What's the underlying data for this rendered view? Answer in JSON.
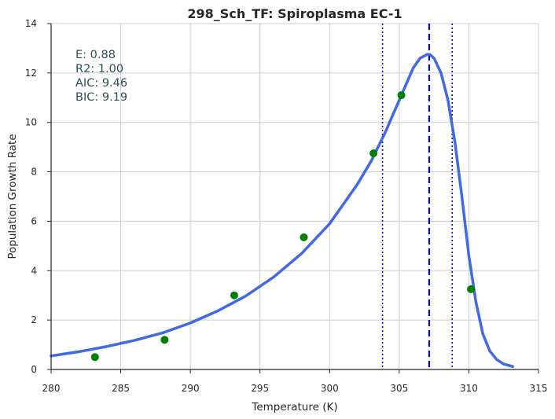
{
  "chart_data": {
    "type": "line",
    "title": "298_Sch_TF: Spiroplasma EC-1",
    "xlabel": "Temperature (K)",
    "ylabel": "Population Growth Rate",
    "xlim": [
      280,
      315
    ],
    "ylim": [
      0,
      14
    ],
    "xticks": [
      280,
      285,
      290,
      295,
      300,
      305,
      310,
      315
    ],
    "yticks": [
      0,
      2,
      4,
      6,
      8,
      10,
      12,
      14
    ],
    "grid": true,
    "stats": [
      "E:  0.88",
      "R2:  1.00",
      "AIC: 9.46",
      "BIC: 9.19"
    ],
    "observed_points": {
      "color": "#008000",
      "x": [
        283.15,
        288.15,
        293.15,
        298.15,
        303.15,
        305.15,
        310.15
      ],
      "y": [
        0.5,
        1.2,
        3.0,
        5.35,
        8.75,
        11.1,
        3.25
      ]
    },
    "fitted_curve": {
      "color": "#4169E1",
      "x": [
        280,
        282,
        284,
        286,
        288,
        290,
        292,
        294,
        296,
        298,
        300,
        302,
        303,
        304,
        305,
        305.5,
        306,
        306.5,
        307,
        307.2,
        307.5,
        308,
        308.5,
        309,
        309.5,
        310,
        310.5,
        311,
        311.5,
        312,
        312.5,
        313.15
      ],
      "y": [
        0.55,
        0.72,
        0.93,
        1.18,
        1.48,
        1.88,
        2.38,
        2.98,
        3.75,
        4.7,
        5.9,
        7.5,
        8.45,
        9.6,
        10.9,
        11.55,
        12.2,
        12.6,
        12.75,
        12.75,
        12.6,
        12.0,
        10.9,
        9.2,
        7.0,
        4.6,
        2.75,
        1.45,
        0.75,
        0.4,
        0.22,
        0.12
      ]
    },
    "reference_lines": [
      {
        "x": 303.8,
        "style": "dotted",
        "color": "#0000FF"
      },
      {
        "x": 307.15,
        "style": "dashed",
        "color": "#0000FF"
      },
      {
        "x": 308.8,
        "style": "dotted",
        "color": "#0000FF"
      }
    ]
  }
}
